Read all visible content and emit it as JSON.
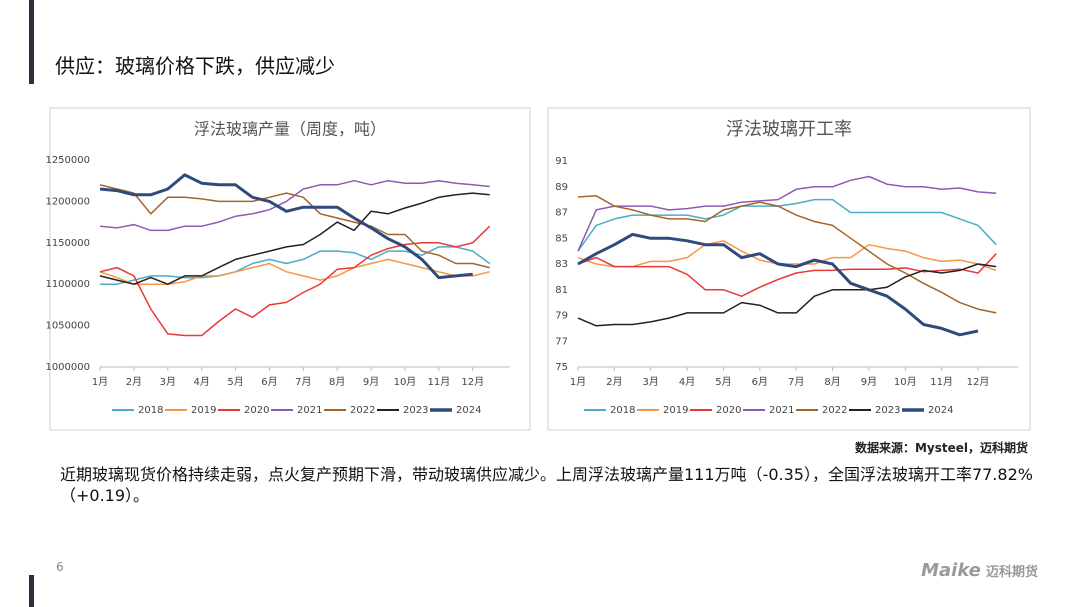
{
  "header": {
    "title": "供应：玻璃价格下跌，供应减少"
  },
  "chart_data": [
    {
      "type": "line",
      "title": "浮法玻璃产量（周度，吨）",
      "x": [
        1,
        1.5,
        2,
        2.5,
        3,
        3.5,
        4,
        4.5,
        5,
        5.5,
        6,
        6.5,
        7,
        7.5,
        8,
        8.5,
        9,
        9.5,
        10,
        10.5,
        11,
        11.5,
        12,
        12.5
      ],
      "xlim": [
        1,
        13.1
      ],
      "xticks": [
        {
          "value": 1,
          "label": "1月"
        },
        {
          "value": 2,
          "label": "2月"
        },
        {
          "value": 3,
          "label": "3月"
        },
        {
          "value": 4,
          "label": "4月"
        },
        {
          "value": 5,
          "label": "5月"
        },
        {
          "value": 6,
          "label": "6月"
        },
        {
          "value": 7,
          "label": "7月"
        },
        {
          "value": 8,
          "label": "8月"
        },
        {
          "value": 9,
          "label": "9月"
        },
        {
          "value": 10,
          "label": "10月"
        },
        {
          "value": 11,
          "label": "11月"
        },
        {
          "value": 12,
          "label": "12月"
        }
      ],
      "ylim": [
        1000000,
        1250000
      ],
      "yticks": [
        1000000,
        1050000,
        1100000,
        1150000,
        1200000,
        1250000
      ],
      "grid": false,
      "legend": "bottom",
      "series": [
        {
          "name": "2018",
          "color": "#4bacc6",
          "linewidth": 1.5,
          "values": [
            1100000,
            1100000,
            1105000,
            1110000,
            1110000,
            1108000,
            1108000,
            1110000,
            1115000,
            1125000,
            1130000,
            1125000,
            1130000,
            1140000,
            1140000,
            1138000,
            1130000,
            1140000,
            1140000,
            1135000,
            1145000,
            1145000,
            1140000,
            1125000
          ]
        },
        {
          "name": "2019",
          "color": "#f79646",
          "linewidth": 1.5,
          "values": [
            1115000,
            1108000,
            1100000,
            1100000,
            1100000,
            1103000,
            1110000,
            1110000,
            1115000,
            1120000,
            1125000,
            1115000,
            1110000,
            1105000,
            1110000,
            1120000,
            1125000,
            1130000,
            1125000,
            1120000,
            1115000,
            1110000,
            1110000,
            1115000
          ]
        },
        {
          "name": "2020",
          "color": "#e83a3a",
          "linewidth": 1.5,
          "values": [
            1115000,
            1120000,
            1110000,
            1070000,
            1040000,
            1038000,
            1038000,
            1055000,
            1070000,
            1060000,
            1075000,
            1078000,
            1090000,
            1100000,
            1118000,
            1120000,
            1135000,
            1143000,
            1148000,
            1150000,
            1150000,
            1145000,
            1150000,
            1170000
          ]
        },
        {
          "name": "2021",
          "color": "#8e5ab5",
          "linewidth": 1.5,
          "values": [
            1170000,
            1168000,
            1172000,
            1165000,
            1165000,
            1170000,
            1170000,
            1175000,
            1182000,
            1185000,
            1190000,
            1200000,
            1215000,
            1220000,
            1220000,
            1225000,
            1220000,
            1225000,
            1222000,
            1222000,
            1225000,
            1222000,
            1220000,
            1218000
          ]
        },
        {
          "name": "2022",
          "color": "#a5652a",
          "linewidth": 1.5,
          "values": [
            1220000,
            1215000,
            1210000,
            1185000,
            1205000,
            1205000,
            1203000,
            1200000,
            1200000,
            1200000,
            1205000,
            1210000,
            1205000,
            1185000,
            1180000,
            1175000,
            1170000,
            1160000,
            1160000,
            1140000,
            1135000,
            1125000,
            1125000,
            1120000
          ]
        },
        {
          "name": "2023",
          "color": "#222222",
          "linewidth": 1.5,
          "values": [
            1110000,
            1105000,
            1100000,
            1108000,
            1100000,
            1110000,
            1110000,
            1120000,
            1130000,
            1135000,
            1140000,
            1145000,
            1148000,
            1160000,
            1175000,
            1165000,
            1188000,
            1185000,
            1192000,
            1198000,
            1205000,
            1208000,
            1210000,
            1208000
          ]
        },
        {
          "name": "2024",
          "color": "#2f4a7c",
          "linewidth": 3,
          "values": [
            1215000,
            1213000,
            1208000,
            1208000,
            1215000,
            1232000,
            1222000,
            1220000,
            1220000,
            1205000,
            1200000,
            1188000,
            1193000,
            1193000,
            1193000,
            1180000,
            1168000,
            1155000,
            1145000,
            1130000,
            1108000,
            1110000,
            1112000,
            null
          ]
        }
      ]
    },
    {
      "type": "line",
      "title": "浮法玻璃开工率",
      "x": [
        1,
        1.5,
        2,
        2.5,
        3,
        3.5,
        4,
        4.5,
        5,
        5.5,
        6,
        6.5,
        7,
        7.5,
        8,
        8.5,
        9,
        9.5,
        10,
        10.5,
        11,
        11.5,
        12,
        12.5
      ],
      "xlim": [
        1,
        13.1
      ],
      "xticks": [
        {
          "value": 1,
          "label": "1月"
        },
        {
          "value": 2,
          "label": "2月"
        },
        {
          "value": 3,
          "label": "3月"
        },
        {
          "value": 4,
          "label": "4月"
        },
        {
          "value": 5,
          "label": "5月"
        },
        {
          "value": 6,
          "label": "6月"
        },
        {
          "value": 7,
          "label": "7月"
        },
        {
          "value": 8,
          "label": "8月"
        },
        {
          "value": 9,
          "label": "9月"
        },
        {
          "value": 10,
          "label": "10月"
        },
        {
          "value": 11,
          "label": "11月"
        },
        {
          "value": 12,
          "label": "12月"
        }
      ],
      "ylim": [
        75,
        91
      ],
      "yticks": [
        75,
        77,
        79,
        81,
        83,
        85,
        87,
        89,
        91
      ],
      "grid": false,
      "legend": "bottom",
      "series": [
        {
          "name": "2018",
          "color": "#4bacc6",
          "linewidth": 1.5,
          "values": [
            84,
            86,
            86.5,
            86.8,
            86.8,
            86.8,
            86.8,
            86.5,
            86.8,
            87.5,
            87.5,
            87.5,
            87.7,
            88,
            88,
            87,
            87,
            87,
            87,
            87,
            87,
            86.5,
            86,
            84.5
          ]
        },
        {
          "name": "2019",
          "color": "#f79646",
          "linewidth": 1.5,
          "values": [
            83.5,
            83,
            82.8,
            82.8,
            83.2,
            83.2,
            83.5,
            84.5,
            84.8,
            84,
            83.3,
            83,
            83,
            83,
            83.5,
            83.5,
            84.5,
            84.2,
            84,
            83.5,
            83.2,
            83.3,
            83,
            82.5
          ]
        },
        {
          "name": "2020",
          "color": "#e83a3a",
          "linewidth": 1.5,
          "values": [
            83,
            83.5,
            82.8,
            82.8,
            82.8,
            82.8,
            82.2,
            81,
            81,
            80.5,
            81.2,
            81.8,
            82.3,
            82.5,
            82.5,
            82.6,
            82.6,
            82.6,
            82.7,
            82.4,
            82.5,
            82.6,
            82.3,
            83.8
          ]
        },
        {
          "name": "2021",
          "color": "#8e5ab5",
          "linewidth": 1.5,
          "values": [
            84,
            87.2,
            87.5,
            87.5,
            87.5,
            87.2,
            87.3,
            87.5,
            87.5,
            87.8,
            87.9,
            88,
            88.8,
            89,
            89,
            89.5,
            89.8,
            89.2,
            89,
            89,
            88.8,
            88.9,
            88.6,
            88.5
          ]
        },
        {
          "name": "2022",
          "color": "#a5652a",
          "linewidth": 1.5,
          "values": [
            88.2,
            88.3,
            87.5,
            87.2,
            86.8,
            86.5,
            86.5,
            86.3,
            87.2,
            87.5,
            87.8,
            87.5,
            86.8,
            86.3,
            86,
            85,
            84,
            83,
            82.3,
            81.5,
            80.8,
            80,
            79.5,
            79.2
          ]
        },
        {
          "name": "2023",
          "color": "#222222",
          "linewidth": 1.5,
          "values": [
            78.8,
            78.2,
            78.3,
            78.3,
            78.5,
            78.8,
            79.2,
            79.2,
            79.2,
            80,
            79.8,
            79.2,
            79.2,
            80.5,
            81,
            81,
            81,
            81.2,
            82,
            82.5,
            82.3,
            82.5,
            83,
            82.8
          ]
        },
        {
          "name": "2024",
          "color": "#2f4a7c",
          "linewidth": 3,
          "values": [
            83,
            83.8,
            84.5,
            85.3,
            85,
            85,
            84.8,
            84.5,
            84.5,
            83.5,
            83.8,
            83,
            82.8,
            83.3,
            83,
            81.5,
            81,
            80.5,
            79.5,
            78.3,
            78,
            77.5,
            77.8,
            null
          ]
        }
      ]
    }
  ],
  "source": "数据来源：Mysteel，迈科期货",
  "body": "近期玻璃现货价格持续走弱，点火复产预期下滑，带动玻璃供应减少。上周浮法玻璃产量111万吨（-0.35），全国浮法玻璃开工率77.82%（+0.19）。",
  "page_number": "6",
  "logo": {
    "latin": "Maike",
    "chinese": "迈科期货"
  }
}
